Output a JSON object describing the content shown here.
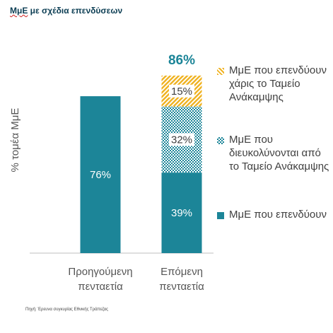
{
  "title": {
    "lead": "ΜμΕ",
    "rest": " με σχέδια επενδύσεων"
  },
  "chart_data": {
    "type": "bar",
    "stacked": true,
    "title": "ΜμΕ με σχέδια επενδύσεων",
    "ylabel": "% τομέα ΜμΕ",
    "categories": [
      "Προηγούμενη πενταετία",
      "Επόμενη πενταετία"
    ],
    "series": [
      {
        "name": "ΜμΕ που επενδύουν",
        "values": [
          76,
          39
        ],
        "labels": [
          "76%",
          "39%"
        ],
        "color": "#1c8598",
        "pattern": "solid"
      },
      {
        "name": "ΜμΕ που διευκολύνονται από το Ταμείο Ανάκαμψης",
        "values": [
          0,
          32
        ],
        "labels": [
          "",
          "32%"
        ],
        "color": "#1c8598",
        "pattern": "checker"
      },
      {
        "name": "ΜμΕ που επενδύουν χάρις το Ταμείο Ανάκαμψης",
        "values": [
          0,
          15
        ],
        "labels": [
          "",
          "15%"
        ],
        "color": "#f0b323",
        "pattern": "hatch"
      }
    ],
    "totals": [
      "",
      "86%"
    ],
    "ylim": [
      0,
      100
    ],
    "grid": false,
    "legend_position": "right"
  },
  "legend": [
    {
      "text": "ΜμΕ που επενδύουν χάρις το Ταμείο Ανάκαμψης",
      "series": 2
    },
    {
      "text": "ΜμΕ που διευκολύνονται από το Ταμείο Ανάκαμψης",
      "series": 1
    },
    {
      "text": "ΜμΕ που επενδύουν",
      "series": 0
    }
  ],
  "source": "Πηγή: Έρευνα συγκυρίας Εθνικής Τράπεζας",
  "colors": {
    "teal": "#1c8598",
    "gold": "#f0b323",
    "title": "#0b3d53",
    "text": "#404040"
  }
}
